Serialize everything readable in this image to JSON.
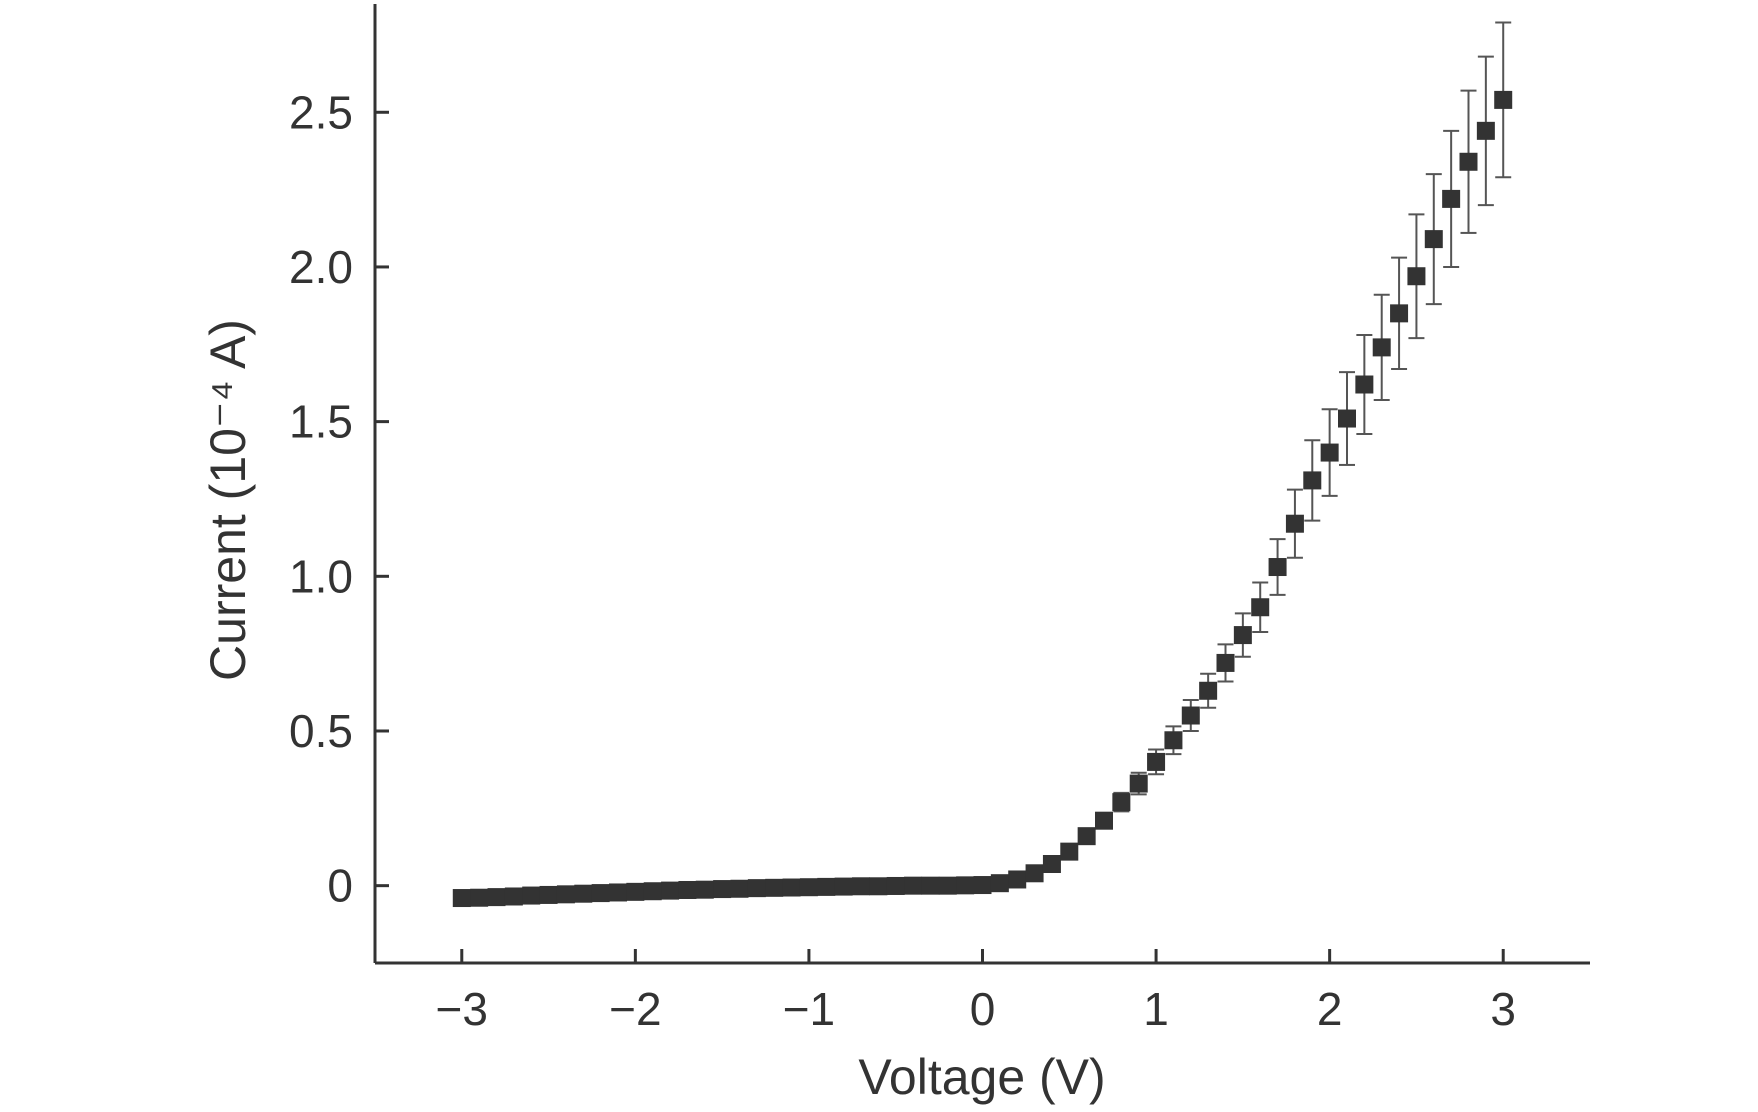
{
  "chart_data": {
    "type": "scatter",
    "title": "",
    "xlabel": "Voltage (V)",
    "ylabel": "Current (10⁻⁴ A)",
    "xlim": [
      -3.5,
      3.5
    ],
    "ylim": [
      -0.25,
      2.85
    ],
    "xticks": [
      -3,
      -2,
      -1,
      0,
      1,
      2,
      3
    ],
    "xtick_labels": [
      "−3",
      "−2",
      "−1",
      "0",
      "1",
      "2",
      "3"
    ],
    "yticks": [
      0,
      0.5,
      1.0,
      1.5,
      2.0,
      2.5
    ],
    "ytick_labels": [
      "0",
      "0.5",
      "1.0",
      "1.5",
      "2.0",
      "2.5"
    ],
    "grid": false,
    "legend": "none",
    "marker": "square",
    "marker_color": "#333333",
    "series": [
      {
        "x": [
          -3.0,
          -2.9,
          -2.8,
          -2.7,
          -2.6,
          -2.5,
          -2.4,
          -2.3,
          -2.2,
          -2.1,
          -2.0,
          -1.9,
          -1.8,
          -1.7,
          -1.6,
          -1.5,
          -1.4,
          -1.3,
          -1.2,
          -1.1,
          -1.0,
          -0.9,
          -0.8,
          -0.7,
          -0.6,
          -0.5,
          -0.4,
          -0.3,
          -0.2,
          -0.1,
          0.0,
          0.1,
          0.2,
          0.3,
          0.4,
          0.5,
          0.6,
          0.7,
          0.8,
          0.9,
          1.0,
          1.1,
          1.2,
          1.3,
          1.4,
          1.5,
          1.6,
          1.7,
          1.8,
          1.9,
          2.0,
          2.1,
          2.2,
          2.3,
          2.4,
          2.5,
          2.6,
          2.7,
          2.8,
          2.9,
          3.0
        ],
        "y": [
          -0.04,
          -0.039,
          -0.037,
          -0.035,
          -0.032,
          -0.03,
          -0.028,
          -0.026,
          -0.024,
          -0.022,
          -0.02,
          -0.018,
          -0.016,
          -0.014,
          -0.013,
          -0.011,
          -0.01,
          -0.008,
          -0.007,
          -0.006,
          -0.005,
          -0.004,
          -0.003,
          -0.002,
          -0.002,
          -0.001,
          0.0,
          0.0,
          0.0,
          0.001,
          0.002,
          0.008,
          0.02,
          0.04,
          0.07,
          0.11,
          0.16,
          0.21,
          0.27,
          0.33,
          0.4,
          0.47,
          0.55,
          0.63,
          0.72,
          0.81,
          0.9,
          1.03,
          1.17,
          1.31,
          1.4,
          1.51,
          1.62,
          1.74,
          1.85,
          1.97,
          2.09,
          2.22,
          2.34,
          2.44,
          2.54
        ],
        "error": [
          0,
          0,
          0,
          0,
          0,
          0,
          0,
          0,
          0,
          0,
          0,
          0,
          0,
          0,
          0,
          0,
          0,
          0,
          0,
          0,
          0,
          0,
          0,
          0,
          0,
          0,
          0,
          0,
          0,
          0,
          0,
          0,
          0.005,
          0.008,
          0.01,
          0.015,
          0.02,
          0.025,
          0.03,
          0.035,
          0.04,
          0.045,
          0.05,
          0.055,
          0.06,
          0.07,
          0.08,
          0.09,
          0.11,
          0.13,
          0.14,
          0.15,
          0.16,
          0.17,
          0.18,
          0.2,
          0.21,
          0.22,
          0.23,
          0.24,
          0.25
        ]
      }
    ]
  }
}
